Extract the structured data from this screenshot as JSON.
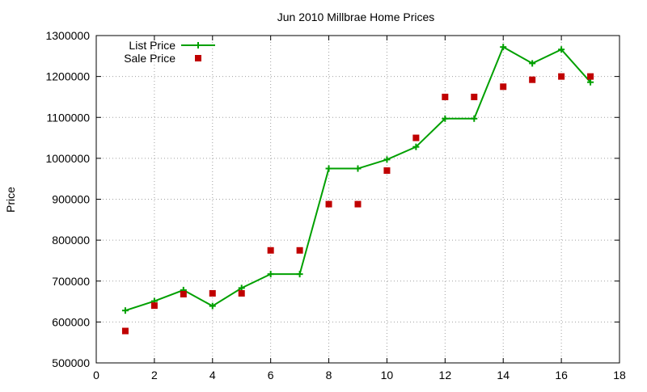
{
  "chart_data": {
    "type": "line",
    "title": "Jun 2010 Millbrae Home Prices",
    "xlabel": "",
    "ylabel": "Price",
    "xlim": [
      0,
      18
    ],
    "ylim": [
      500000,
      1300000
    ],
    "xticks": [
      0,
      2,
      4,
      6,
      8,
      10,
      12,
      14,
      16,
      18
    ],
    "yticks": [
      500000,
      600000,
      700000,
      800000,
      900000,
      1000000,
      1100000,
      1200000,
      1300000
    ],
    "grid": true,
    "legend_position": "top-left",
    "series": [
      {
        "name": "List Price",
        "style": "line-points",
        "marker": "plus",
        "color": "#00a000",
        "x": [
          1,
          2,
          3,
          4,
          5,
          6,
          7,
          8,
          9,
          10,
          11,
          12,
          13,
          14,
          15,
          16,
          17
        ],
        "y": [
          628000,
          651000,
          678000,
          639000,
          683000,
          717000,
          717000,
          975000,
          975000,
          997000,
          1028000,
          1097000,
          1097000,
          1272000,
          1232000,
          1266000,
          1186000
        ]
      },
      {
        "name": "Sale Price",
        "style": "points",
        "marker": "square",
        "color": "#c00000",
        "x": [
          1,
          2,
          3,
          4,
          5,
          6,
          7,
          8,
          9,
          10,
          11,
          12,
          13,
          14,
          15,
          16,
          17
        ],
        "y": [
          578000,
          640000,
          668000,
          670000,
          670000,
          775000,
          775000,
          888000,
          888000,
          970000,
          1050000,
          1150000,
          1150000,
          1175000,
          1192000,
          1200000,
          1200000
        ]
      }
    ]
  }
}
